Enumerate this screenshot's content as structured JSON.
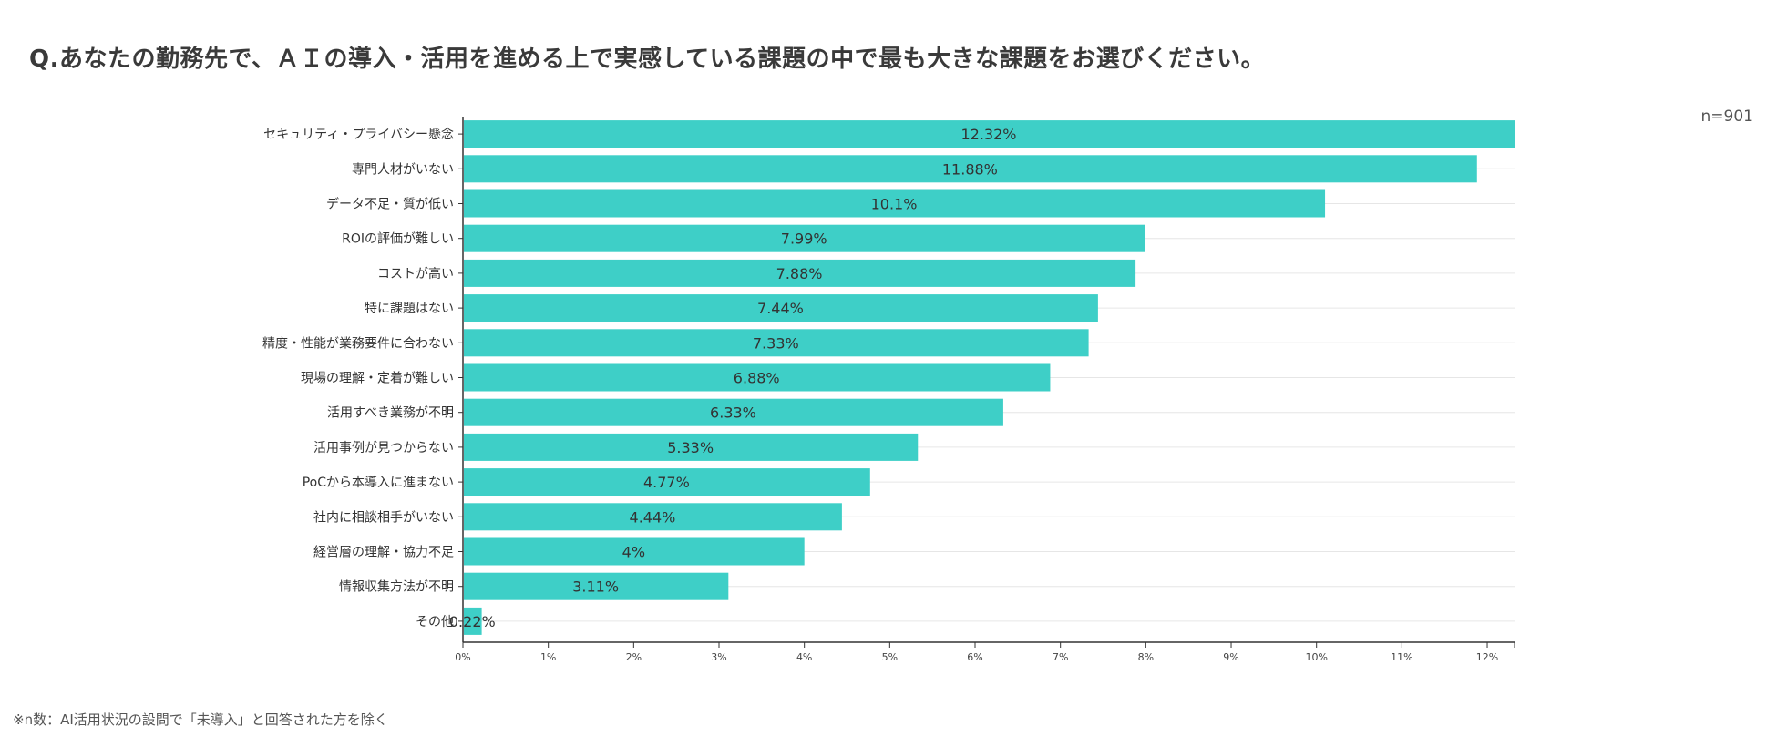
{
  "title": "Q.あなたの勤務先で、ＡＩの導入・活用を進める上で実感している課題の中で最も大きな課題をお選びください。",
  "sample_size": "n=901",
  "footnote": "※n数：AI活用状況の設問で「未導入」と回答された方を除く",
  "colors": {
    "bar": "#3ecfc7",
    "grid": "#e6e6e6",
    "axis": "#333333"
  },
  "chart_data": {
    "type": "bar",
    "orientation": "horizontal",
    "title": "Q.あなたの勤務先で、ＡＩの導入・活用を進める上で実感している課題の中で最も大きな課題をお選びください。",
    "categories": [
      "セキュリティ・プライバシー懸念",
      "専門人材がいない",
      "データ不足・質が低い",
      "ROIの評価が難しい",
      "コストが高い",
      "特に課題はない",
      "精度・性能が業務要件に合わない",
      "現場の理解・定着が難しい",
      "活用すべき業務が不明",
      "活用事例が見つからない",
      "PoCから本導入に進まない",
      "社内に相談相手がいない",
      "経営層の理解・協力不足",
      "情報収集方法が不明",
      "その他"
    ],
    "values": [
      12.32,
      11.88,
      10.1,
      7.99,
      7.88,
      7.44,
      7.33,
      6.88,
      6.33,
      5.33,
      4.77,
      4.44,
      4,
      3.11,
      0.22
    ],
    "value_labels": [
      "12.32%",
      "11.88%",
      "10.1%",
      "7.99%",
      "7.88%",
      "7.44%",
      "7.33%",
      "6.88%",
      "6.33%",
      "5.33%",
      "4.77%",
      "4.44%",
      "4%",
      "3.11%",
      "0.22%"
    ],
    "xlim": [
      0,
      12.32
    ],
    "xticks": [
      0,
      1,
      2,
      3,
      4,
      5,
      6,
      7,
      8,
      9,
      10,
      11,
      12
    ],
    "xtick_labels": [
      "0%",
      "1%",
      "2%",
      "3%",
      "4%",
      "5%",
      "6%",
      "7%",
      "8%",
      "9%",
      "10%",
      "11%",
      "12%"
    ],
    "xlabel": "",
    "ylabel": "",
    "grid": true,
    "legend": "none"
  }
}
